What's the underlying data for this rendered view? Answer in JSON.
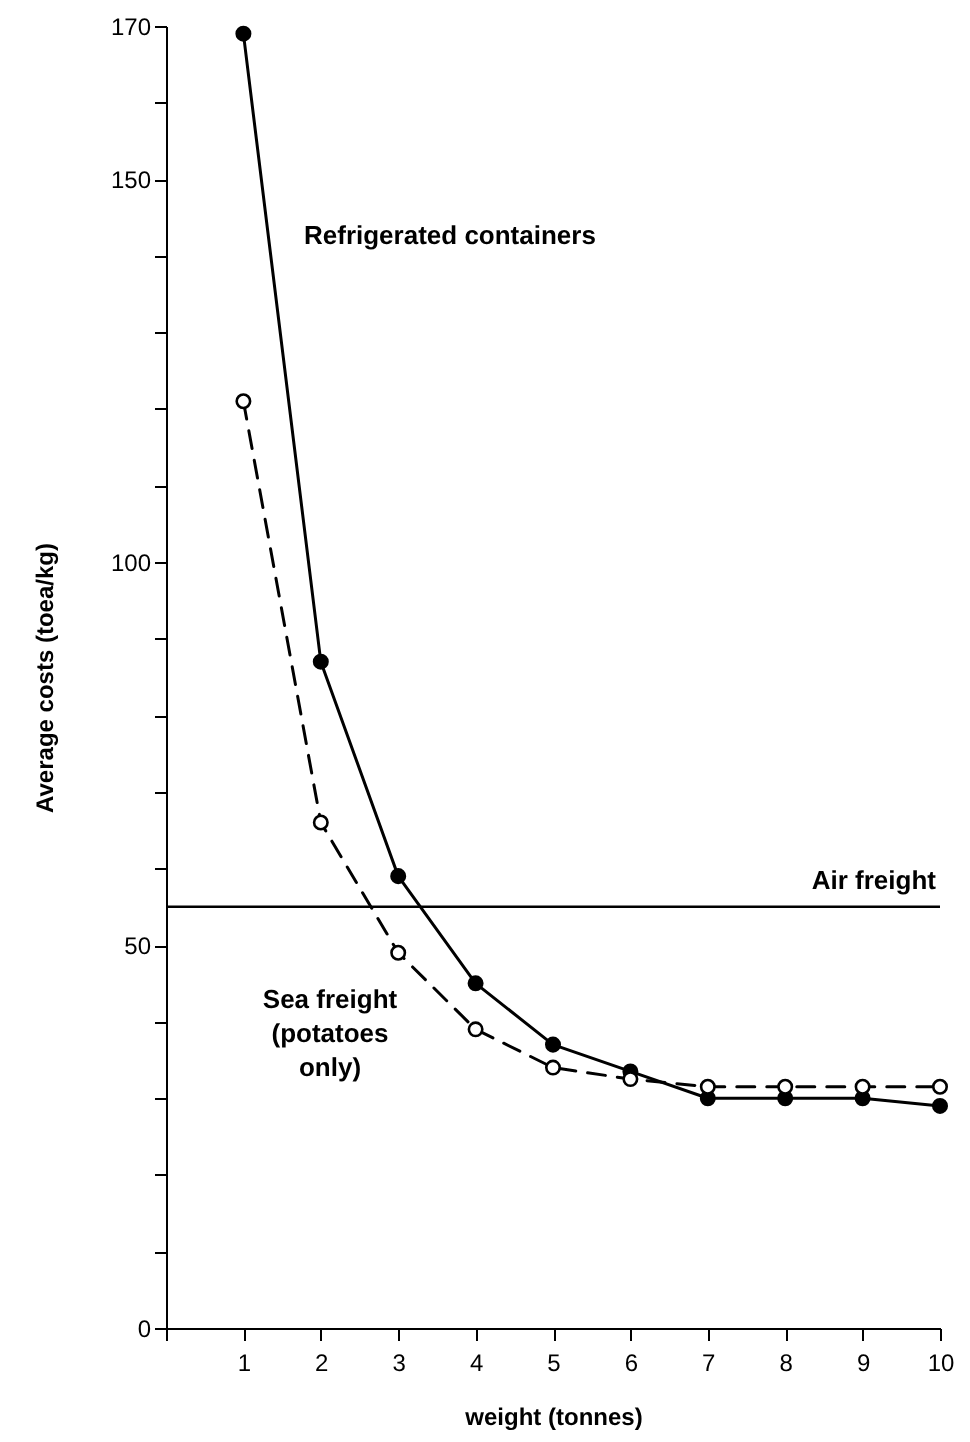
{
  "chart_data": {
    "type": "line",
    "xlabel": "weight (tonnes)",
    "ylabel": "Average costs (toea/kg)",
    "x": [
      1,
      2,
      3,
      4,
      5,
      6,
      7,
      8,
      9,
      10
    ],
    "series": [
      {
        "name": "Refrigerated containers",
        "color": "#000000",
        "line_style": "solid",
        "values": [
          169,
          87,
          59,
          45,
          37,
          33.5,
          30,
          30,
          30,
          29
        ]
      },
      {
        "name": "Sea freight\n(potatoes\nonly)",
        "color": "#000000",
        "line_style": "dashed",
        "values": [
          121,
          66,
          49,
          39,
          34,
          32.5,
          31.5,
          31.5,
          31.5,
          31.5
        ]
      }
    ],
    "xlim": [
      0,
      10
    ],
    "xticks": [
      {
        "value": 0,
        "label": null
      },
      1,
      2,
      3,
      4,
      5,
      6,
      7,
      8,
      9,
      10
    ],
    "ylim": [
      0,
      170
    ],
    "yticks": [
      0,
      {
        "value": 10,
        "label": null
      },
      {
        "value": 20,
        "label": null
      },
      {
        "value": 30,
        "label": null
      },
      {
        "value": 40,
        "label": null
      },
      50,
      {
        "value": 60,
        "label": null
      },
      {
        "value": 70,
        "label": null
      },
      {
        "value": 80,
        "label": null
      },
      {
        "value": 90,
        "label": null
      },
      100,
      {
        "value": 110,
        "label": null
      },
      {
        "value": 120,
        "label": null
      },
      {
        "value": 130,
        "label": null
      },
      {
        "value": 140,
        "label": null
      },
      150,
      {
        "value": 160,
        "label": null
      },
      170
    ],
    "ref_lines": [
      {
        "axis": "y",
        "value": 55,
        "label": "Air freight"
      }
    ],
    "marker": "circle",
    "grid": false
  }
}
